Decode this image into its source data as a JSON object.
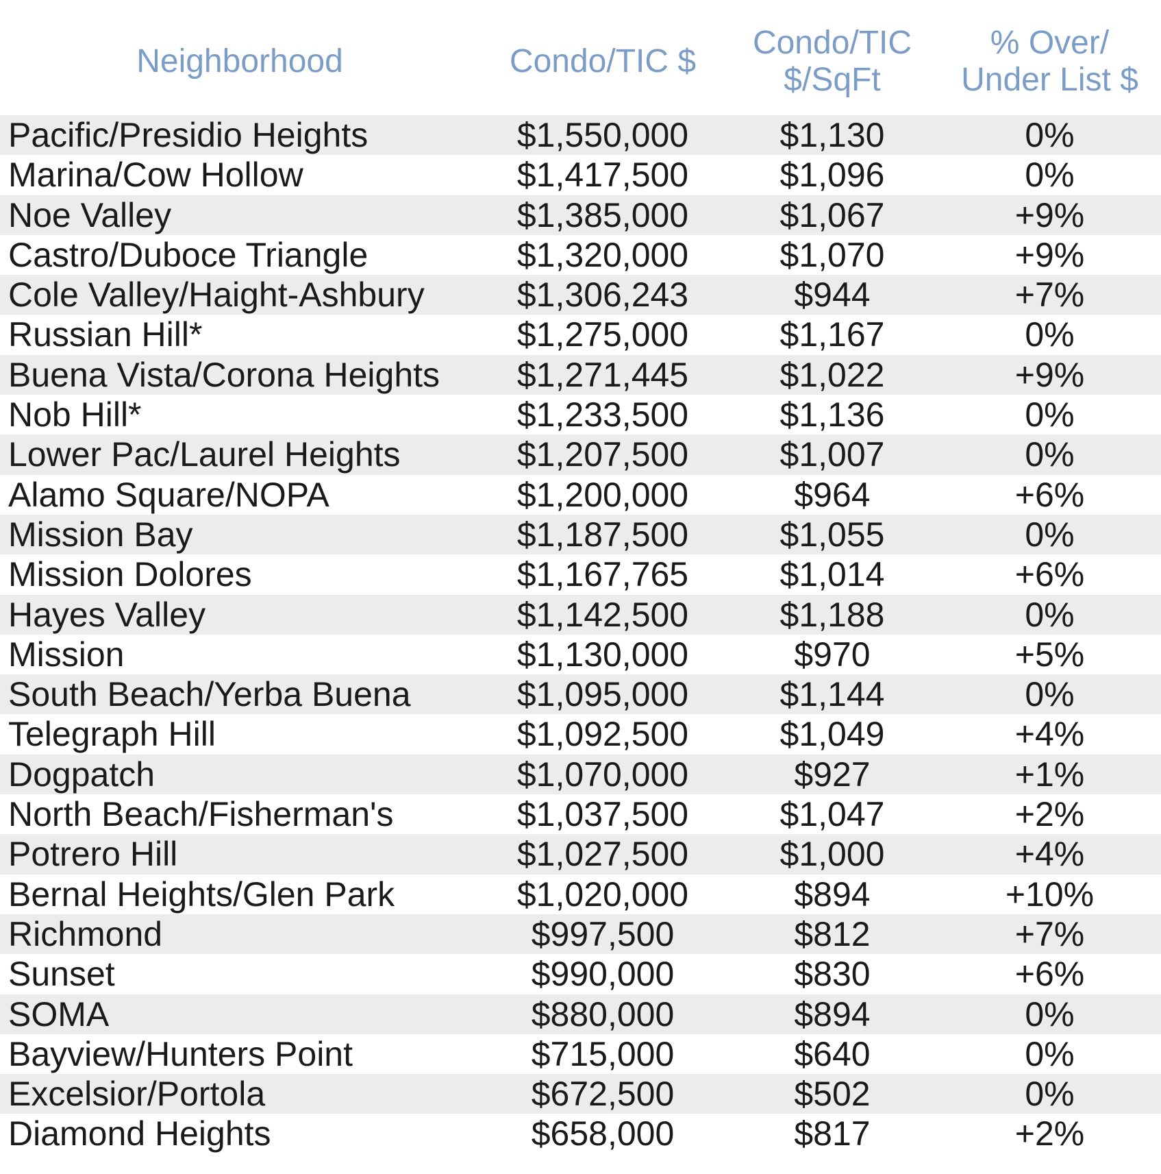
{
  "header": {
    "neighborhood": "Neighborhood",
    "price": "Condo/TIC $",
    "sqft_line1": "Condo/TIC",
    "sqft_line2": "$/SqFt",
    "pct_line1": "% Over/",
    "pct_line2": "Under List $"
  },
  "colors": {
    "header_text": "#7a9cc6",
    "row_shade": "#ececec",
    "body_text": "#1a1a1a"
  },
  "rows": [
    {
      "neighborhood": "Pacific/Presidio Heights",
      "price": "$1,550,000",
      "sqft": "$1,130",
      "pct": "0%"
    },
    {
      "neighborhood": "Marina/Cow Hollow",
      "price": "$1,417,500",
      "sqft": "$1,096",
      "pct": "0%"
    },
    {
      "neighborhood": "Noe Valley",
      "price": "$1,385,000",
      "sqft": "$1,067",
      "pct": "+9%"
    },
    {
      "neighborhood": "Castro/Duboce Triangle",
      "price": "$1,320,000",
      "sqft": "$1,070",
      "pct": "+9%"
    },
    {
      "neighborhood": "Cole Valley/Haight-Ashbury",
      "price": "$1,306,243",
      "sqft": "$944",
      "pct": "+7%"
    },
    {
      "neighborhood": "Russian Hill*",
      "price": "$1,275,000",
      "sqft": "$1,167",
      "pct": "0%"
    },
    {
      "neighborhood": "Buena Vista/Corona Heights",
      "price": "$1,271,445",
      "sqft": "$1,022",
      "pct": "+9%"
    },
    {
      "neighborhood": "Nob Hill*",
      "price": "$1,233,500",
      "sqft": "$1,136",
      "pct": "0%"
    },
    {
      "neighborhood": "Lower Pac/Laurel Heights",
      "price": "$1,207,500",
      "sqft": "$1,007",
      "pct": "0%"
    },
    {
      "neighborhood": "Alamo Square/NOPA",
      "price": "$1,200,000",
      "sqft": "$964",
      "pct": "+6%"
    },
    {
      "neighborhood": "Mission Bay",
      "price": "$1,187,500",
      "sqft": "$1,055",
      "pct": "0%"
    },
    {
      "neighborhood": "Mission Dolores",
      "price": "$1,167,765",
      "sqft": "$1,014",
      "pct": "+6%"
    },
    {
      "neighborhood": "Hayes Valley",
      "price": "$1,142,500",
      "sqft": "$1,188",
      "pct": "0%"
    },
    {
      "neighborhood": "Mission",
      "price": "$1,130,000",
      "sqft": "$970",
      "pct": "+5%"
    },
    {
      "neighborhood": "South Beach/Yerba Buena",
      "price": "$1,095,000",
      "sqft": "$1,144",
      "pct": "0%"
    },
    {
      "neighborhood": "Telegraph Hill",
      "price": "$1,092,500",
      "sqft": "$1,049",
      "pct": "+4%"
    },
    {
      "neighborhood": "Dogpatch",
      "price": "$1,070,000",
      "sqft": "$927",
      "pct": "+1%"
    },
    {
      "neighborhood": "North Beach/Fisherman's",
      "price": "$1,037,500",
      "sqft": "$1,047",
      "pct": "+2%"
    },
    {
      "neighborhood": "Potrero Hill",
      "price": "$1,027,500",
      "sqft": "$1,000",
      "pct": "+4%"
    },
    {
      "neighborhood": "Bernal Heights/Glen Park",
      "price": "$1,020,000",
      "sqft": "$894",
      "pct": "+10%"
    },
    {
      "neighborhood": "Richmond",
      "price": "$997,500",
      "sqft": "$812",
      "pct": "+7%"
    },
    {
      "neighborhood": "Sunset",
      "price": "$990,000",
      "sqft": "$830",
      "pct": "+6%"
    },
    {
      "neighborhood": "SOMA",
      "price": "$880,000",
      "sqft": "$894",
      "pct": "0%"
    },
    {
      "neighborhood": "Bayview/Hunters Point",
      "price": "$715,000",
      "sqft": "$640",
      "pct": "0%"
    },
    {
      "neighborhood": "Excelsior/Portola",
      "price": "$672,500",
      "sqft": "$502",
      "pct": "0%"
    },
    {
      "neighborhood": "Diamond Heights",
      "price": "$658,000",
      "sqft": "$817",
      "pct": "+2%"
    }
  ]
}
